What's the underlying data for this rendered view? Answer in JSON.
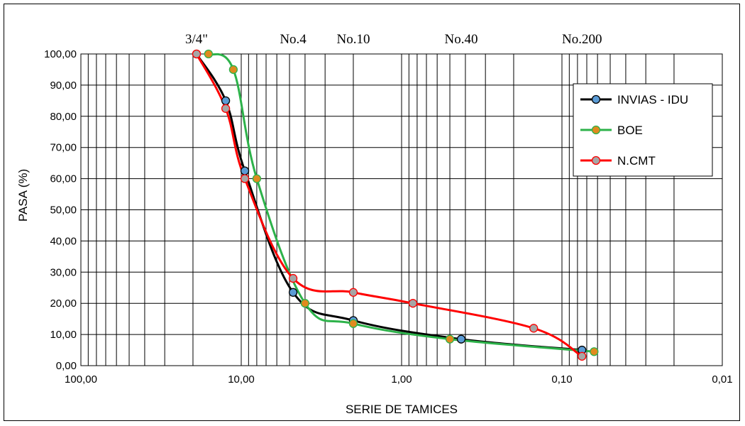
{
  "chart_data": {
    "type": "line",
    "title": "",
    "xlabel": "SERIE DE TAMICES",
    "ylabel": "PASA (%)",
    "x_scale": "log",
    "x_reversed": true,
    "xlim": [
      100,
      0.01
    ],
    "ylim": [
      0,
      100
    ],
    "x_ticks": [
      "100,00",
      "10,00",
      "1,00",
      "0,10",
      "0,01"
    ],
    "y_ticks": [
      "0,00",
      "10,00",
      "20,00",
      "30,00",
      "40,00",
      "50,00",
      "60,00",
      "70,00",
      "80,00",
      "90,00",
      "100,00"
    ],
    "sieve_labels": [
      {
        "label": "3/4\"",
        "x": 19.0
      },
      {
        "label": "No.4",
        "x": 4.75
      },
      {
        "label": "No.10",
        "x": 2.0
      },
      {
        "label": "No.40",
        "x": 0.425
      },
      {
        "label": "No.200",
        "x": 0.075
      }
    ],
    "grid": true,
    "legend_position": "top-right",
    "series": [
      {
        "name": "INVIAS - IDU",
        "line_color": "#000000",
        "marker_color": "#5b9bd5",
        "points": [
          [
            19.0,
            100.0
          ],
          [
            12.5,
            85.0
          ],
          [
            9.5,
            62.5
          ],
          [
            4.75,
            23.5
          ],
          [
            2.0,
            14.5
          ],
          [
            0.425,
            8.5
          ],
          [
            0.075,
            5.0
          ]
        ]
      },
      {
        "name": "BOE",
        "line_color": "#2db24a",
        "marker_color": "#e08a1e",
        "points": [
          [
            16.0,
            100.0
          ],
          [
            11.2,
            95.0
          ],
          [
            8.0,
            60.0
          ],
          [
            4.0,
            20.0
          ],
          [
            2.0,
            13.5
          ],
          [
            0.5,
            8.5
          ],
          [
            0.063,
            4.5
          ]
        ]
      },
      {
        "name": "N.CMT",
        "line_color": "#ff0000",
        "marker_color": "#a6a6a6",
        "points": [
          [
            19.0,
            100.0
          ],
          [
            12.5,
            82.5
          ],
          [
            9.5,
            60.0
          ],
          [
            4.75,
            28.0
          ],
          [
            2.0,
            23.5
          ],
          [
            0.85,
            20.0
          ],
          [
            0.15,
            12.0
          ],
          [
            0.075,
            3.0
          ]
        ]
      }
    ]
  }
}
